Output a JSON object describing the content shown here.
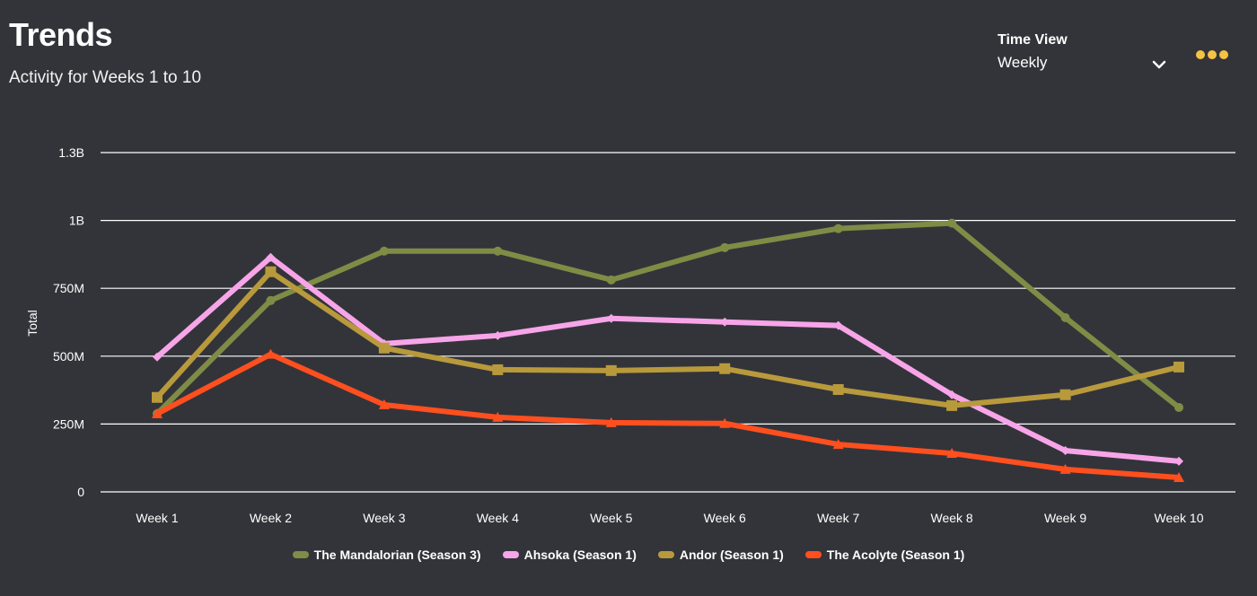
{
  "header": {
    "title": "Trends",
    "subtitle": "Activity for Weeks 1 to 10"
  },
  "time_view": {
    "label": "Time View",
    "selected": "Weekly",
    "chevron_icon": "chevron-down-icon"
  },
  "more_menu": {
    "icon": "more-dots-icon",
    "color": "#f5c242"
  },
  "chart_data": {
    "type": "line",
    "title": "",
    "xlabel": "",
    "ylabel": "Total",
    "categories": [
      "Week 1",
      "Week 2",
      "Week 3",
      "Week 4",
      "Week 5",
      "Week 6",
      "Week 7",
      "Week 8",
      "Week 9",
      "Week 10"
    ],
    "yticks": [
      0,
      250000000,
      500000000,
      750000000,
      1000000000,
      1250000000
    ],
    "ytick_labels": [
      "0",
      "250M",
      "500M",
      "750M",
      "1B",
      "1.3B"
    ],
    "ylim": [
      0,
      1250000000
    ],
    "grid": true,
    "legend_position": "bottom",
    "series": [
      {
        "name": "The Mandalorian (Season 3)",
        "color": "#7f8c45",
        "marker": "circle",
        "values": [
          288000000,
          705000000,
          887000000,
          887000000,
          781000000,
          900000000,
          970000000,
          990000000,
          642000000,
          311000000
        ]
      },
      {
        "name": "Ahsoka (Season 1)",
        "color": "#f7a5e8",
        "marker": "diamond",
        "values": [
          497000000,
          864000000,
          546000000,
          576000000,
          639000000,
          626000000,
          613000000,
          358000000,
          152000000,
          113000000
        ]
      },
      {
        "name": "Andor (Season 1)",
        "color": "#b89a3c",
        "marker": "square",
        "values": [
          348000000,
          811000000,
          530000000,
          450000000,
          447000000,
          454000000,
          377000000,
          318000000,
          358000000,
          460000000
        ]
      },
      {
        "name": "The Acolyte (Season 1)",
        "color": "#ff4f1f",
        "marker": "triangle",
        "values": [
          288000000,
          507000000,
          321000000,
          275000000,
          255000000,
          252000000,
          175000000,
          142000000,
          83000000,
          53000000
        ]
      }
    ]
  }
}
